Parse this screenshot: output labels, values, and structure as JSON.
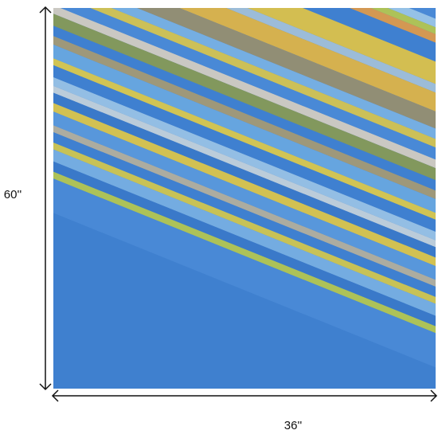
{
  "dimensions": {
    "height": "60''",
    "width": "36''"
  }
}
